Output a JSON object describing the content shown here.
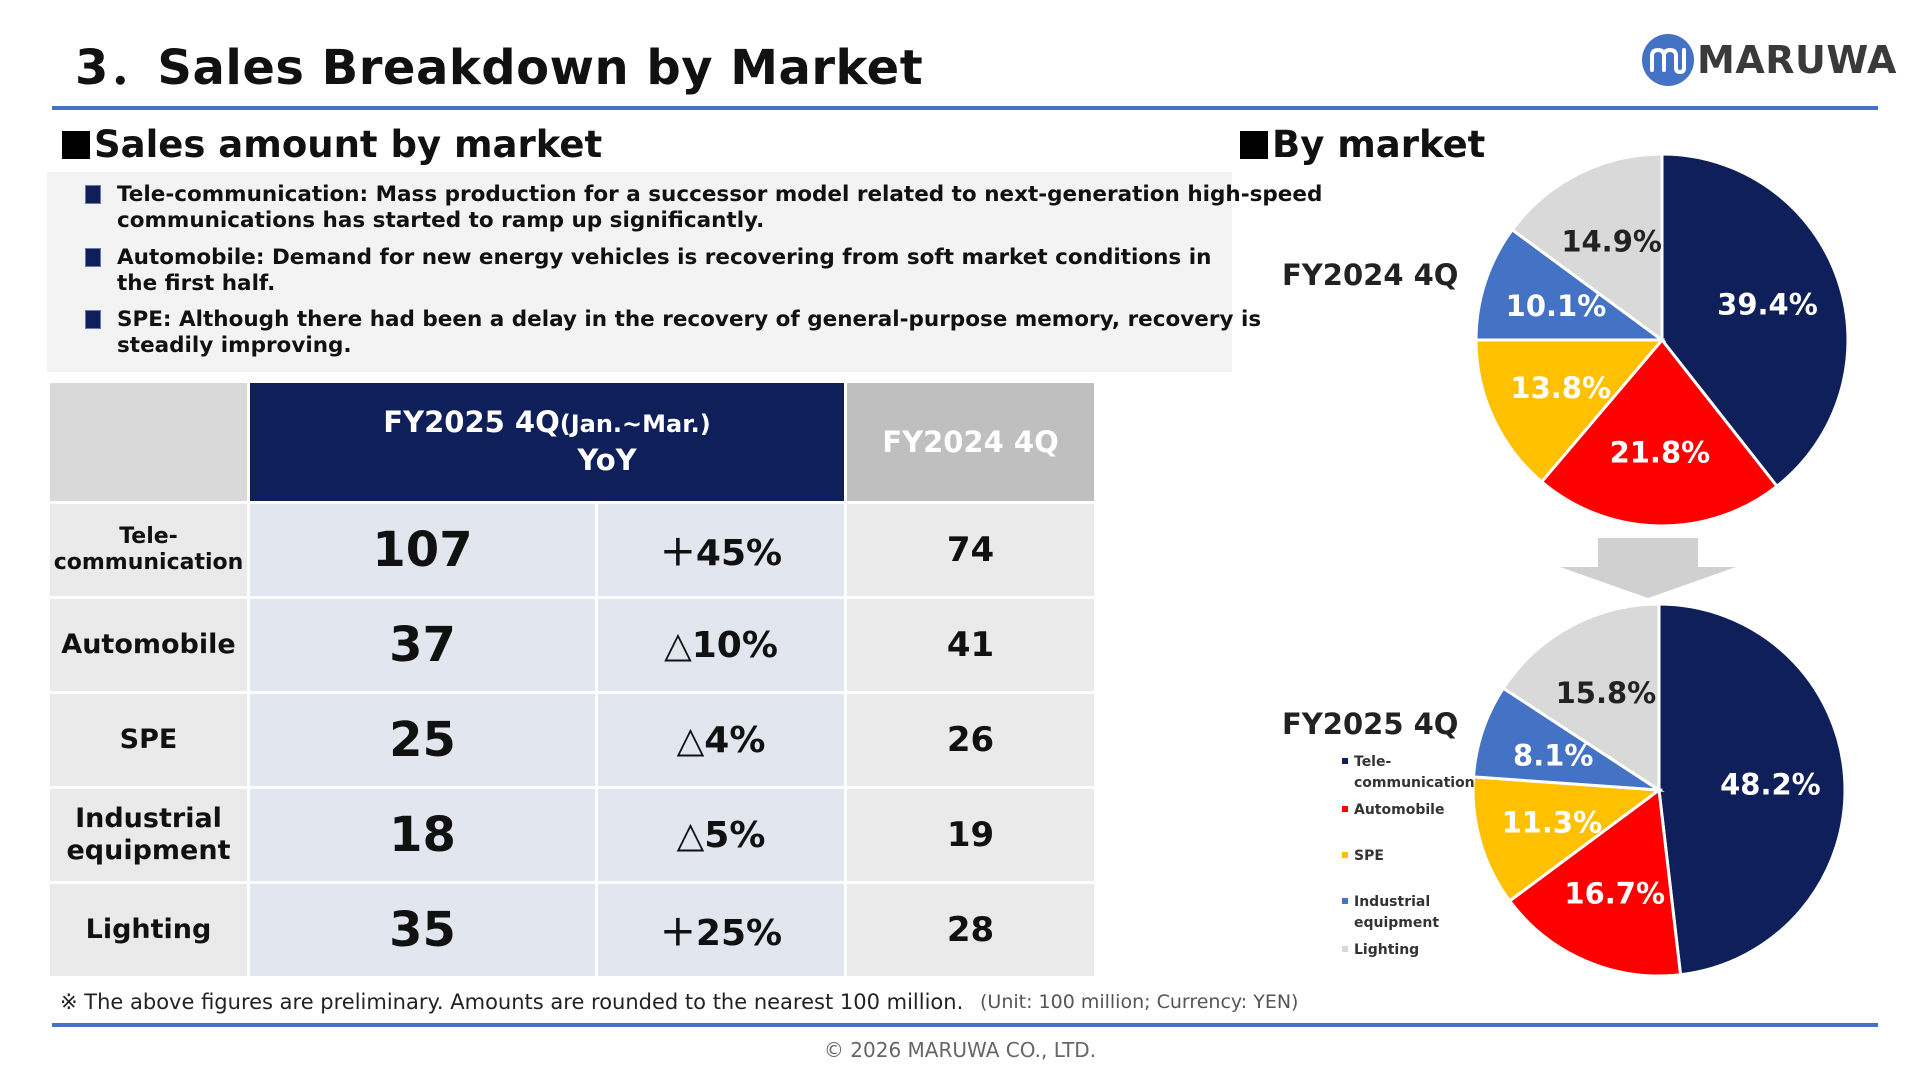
{
  "header": {
    "title": "3．Sales Breakdown by Market",
    "logo_text": "MARUWA"
  },
  "left_section": {
    "title": "Sales amount by market",
    "notes": [
      {
        "line1": "Tele-communication: Mass production for a successor model related to next-generation high-speed",
        "line2": "communications  has started to ramp up significantly."
      },
      {
        "line1": "Automobile: Demand for new energy vehicles is recovering from soft market conditions in",
        "line2": "the first half."
      },
      {
        "line1": "SPE: Although there had been a delay in the recovery of general-purpose memory, recovery is",
        "line2": "steadily improving."
      }
    ]
  },
  "table": {
    "col_fy2025": "FY2025 4Q",
    "col_fy2025_period": "(Jan.~Mar.)",
    "col_yoy": "YoY",
    "col_fy2024": "FY2024 4Q",
    "rows": [
      {
        "label1": "Tele-",
        "label2": "communication",
        "amount": "107",
        "yoy": "＋45%",
        "prev": "74"
      },
      {
        "label1": "Automobile",
        "label2": "",
        "amount": "37",
        "yoy": "△10%",
        "prev": "41"
      },
      {
        "label1": "SPE",
        "label2": "",
        "amount": "25",
        "yoy": "△4%",
        "prev": "26"
      },
      {
        "label1": "Industrial",
        "label2": "equipment",
        "amount": "18",
        "yoy": "△5%",
        "prev": "19"
      },
      {
        "label1": "Lighting",
        "label2": "",
        "amount": "35",
        "yoy": "＋25%",
        "prev": "28"
      }
    ]
  },
  "footnote": "※ The above figures are preliminary. Amounts are rounded to the nearest 100 million.",
  "unit_note": "(Unit: 100 million; Currency: YEN)",
  "copyright": "© 2026 MARUWA CO., LTD.",
  "right_section": {
    "title": "By market"
  },
  "colors": {
    "navy": "#0e1f5a",
    "accent_rule": "#4472c4",
    "tele": "#0e1f5a",
    "auto": "#ff0000",
    "spe": "#ffc000",
    "industrial": "#4472c4",
    "lighting": "#d9d9d9"
  },
  "chart_data": [
    {
      "type": "pie",
      "title": "FY2024 4Q",
      "categories": [
        "Tele-communication",
        "Automobile",
        "SPE",
        "Industrial equipment",
        "Lighting"
      ],
      "values": [
        39.4,
        21.8,
        13.8,
        10.1,
        14.9
      ],
      "labels": [
        "39.4%",
        "21.8%",
        "13.8%",
        "10.1%",
        "14.9%"
      ],
      "colors": [
        "#0e1f5a",
        "#ff0000",
        "#ffc000",
        "#4472c4",
        "#d9d9d9"
      ],
      "legend": false
    },
    {
      "type": "pie",
      "title": "FY2025 4Q",
      "categories": [
        "Tele-communication",
        "Automobile",
        "SPE",
        "Industrial equipment",
        "Lighting"
      ],
      "values": [
        48.2,
        16.7,
        11.3,
        8.1,
        15.8
      ],
      "labels": [
        "48.2%",
        "16.7%",
        "11.3%",
        "8.1%",
        "15.8%"
      ],
      "colors": [
        "#0e1f5a",
        "#ff0000",
        "#ffc000",
        "#4472c4",
        "#d9d9d9"
      ],
      "legend": true,
      "legend_placement": "left",
      "legend_entries": [
        {
          "line1": "Tele-",
          "line2": "communication"
        },
        {
          "line1": "Automobile",
          "line2": ""
        },
        {
          "line1": "SPE",
          "line2": ""
        },
        {
          "line1": "Industrial",
          "line2": "equipment"
        },
        {
          "line1": "Lighting",
          "line2": ""
        }
      ]
    }
  ]
}
